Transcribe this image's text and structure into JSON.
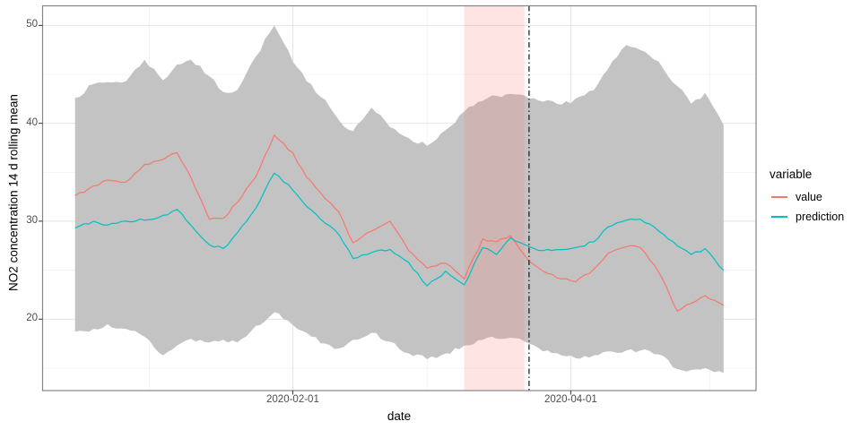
{
  "chart_data": {
    "type": "line",
    "title": "",
    "xlabel": "date",
    "ylabel": "NO2 concentration 14 d rolling mean",
    "x_tick_labels": [
      "2020-02-01",
      "2020-04-01"
    ],
    "x_minor_gridlines": [
      "2020-01-01",
      "2020-03-01",
      "2020-05-01"
    ],
    "y_ticks": [
      50,
      40,
      30,
      20
    ],
    "y_minor_gridlines": [
      15,
      25,
      35,
      45
    ],
    "x_range": [
      "2019-12-09",
      "2020-05-11"
    ],
    "y_range": [
      12.7,
      52.0
    ],
    "grid": true,
    "legend": {
      "title": "variable",
      "position": "right"
    },
    "x_dates": [
      "2019-12-16",
      "2019-12-20",
      "2019-12-23",
      "2019-12-27",
      "2019-12-31",
      "2020-01-04",
      "2020-01-07",
      "2020-01-10",
      "2020-01-14",
      "2020-01-17",
      "2020-01-20",
      "2020-01-24",
      "2020-01-28",
      "2020-02-01",
      "2020-02-04",
      "2020-02-08",
      "2020-02-11",
      "2020-02-14",
      "2020-02-18",
      "2020-02-22",
      "2020-02-26",
      "2020-03-01",
      "2020-03-05",
      "2020-03-09",
      "2020-03-13",
      "2020-03-16",
      "2020-03-19",
      "2020-03-23",
      "2020-03-26",
      "2020-03-30",
      "2020-04-02",
      "2020-04-06",
      "2020-04-09",
      "2020-04-13",
      "2020-04-16",
      "2020-04-20",
      "2020-04-24",
      "2020-04-27",
      "2020-04-30",
      "2020-05-04"
    ],
    "series": [
      {
        "name": "value",
        "color": "#F8766D",
        "values": [
          32.6,
          33.6,
          34.2,
          34.0,
          35.8,
          36.3,
          37.0,
          34.5,
          30.2,
          30.3,
          31.9,
          34.5,
          38.8,
          37.0,
          34.5,
          32.3,
          30.9,
          27.8,
          29.0,
          30.0,
          27.0,
          25.2,
          25.7,
          24.1,
          28.2,
          27.9,
          28.5,
          25.9,
          24.9,
          24.1,
          23.8,
          25.1,
          26.7,
          27.4,
          27.3,
          24.8,
          20.8,
          21.6,
          22.4,
          21.4
        ]
      },
      {
        "name": "prediction",
        "color": "#00BFC4",
        "values": [
          29.3,
          30.0,
          29.6,
          30.0,
          30.1,
          30.6,
          31.2,
          29.6,
          27.6,
          27.2,
          28.8,
          31.3,
          34.9,
          33.2,
          31.5,
          29.8,
          28.6,
          26.2,
          26.8,
          27.1,
          25.8,
          23.4,
          24.9,
          23.5,
          27.3,
          26.6,
          28.3,
          27.4,
          27.0,
          27.1,
          27.3,
          27.9,
          29.4,
          30.1,
          30.2,
          29.0,
          27.5,
          26.6,
          27.2,
          25.0
        ]
      }
    ],
    "ribbon": {
      "name": "uncertainty-band",
      "color": "#C3C3C3",
      "upper": [
        42.6,
        44.0,
        44.2,
        44.3,
        46.5,
        44.4,
        46.0,
        46.5,
        44.8,
        43.2,
        43.4,
        46.8,
        50.0,
        46.3,
        44.3,
        42.4,
        40.3,
        39.2,
        41.6,
        39.6,
        38.5,
        37.7,
        39.3,
        41.2,
        42.3,
        42.8,
        43.0,
        42.5,
        42.2,
        41.9,
        42.5,
        43.4,
        45.5,
        48.0,
        47.5,
        46.3,
        43.8,
        42.0,
        43.1,
        39.8
      ],
      "lower": [
        18.7,
        19.0,
        19.5,
        19.0,
        18.2,
        16.3,
        17.3,
        18.0,
        17.6,
        17.9,
        17.6,
        19.3,
        20.7,
        19.4,
        18.6,
        17.5,
        17.0,
        17.9,
        18.6,
        17.7,
        16.5,
        15.9,
        16.5,
        17.3,
        17.9,
        18.0,
        18.1,
        17.5,
        16.7,
        16.3,
        16.0,
        16.3,
        16.7,
        16.8,
        16.8,
        16.4,
        14.9,
        14.8,
        15.0,
        14.5
      ]
    },
    "annotations": {
      "shaded_band": {
        "x_from": "2020-03-09",
        "x_to": "2020-03-22",
        "fill": "#F8766D",
        "opacity": 0.2
      },
      "vline": {
        "x": "2020-03-23",
        "line_style": "dash-dot",
        "color": "#111111"
      }
    },
    "panel": {
      "border_color": "#858585",
      "grid_major_color": "#e4e4e4",
      "grid_minor_color": "#f0f0f0",
      "tick_color": "#333333"
    }
  }
}
